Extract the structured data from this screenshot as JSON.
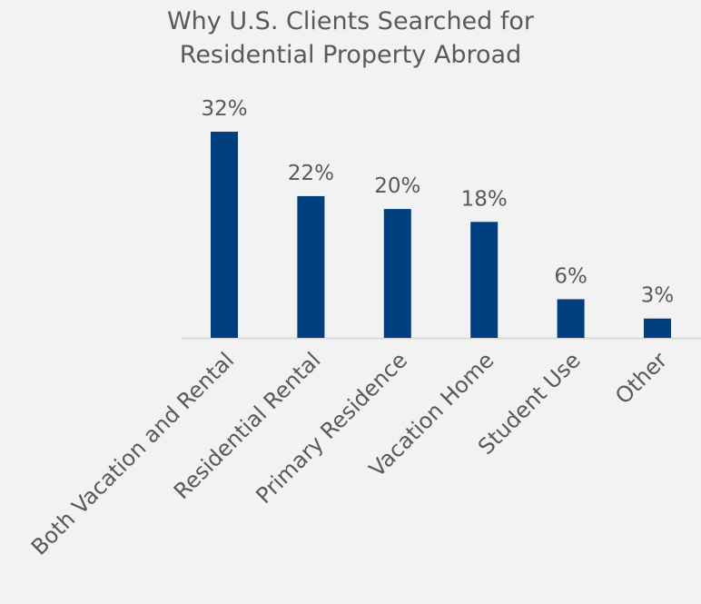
{
  "chart_data": {
    "type": "bar",
    "title": [
      "Why U.S. Clients Searched for",
      "Residential Property Abroad"
    ],
    "categories": [
      "Both Vacation and Rental",
      "Residential Rental",
      "Primary Residence",
      "Vacation Home",
      "Student Use",
      "Other"
    ],
    "values": [
      32,
      22,
      20,
      18,
      6,
      3
    ],
    "data_labels": [
      "32%",
      "22%",
      "20%",
      "18%",
      "6%",
      "3%"
    ],
    "ylim": [
      0,
      35
    ],
    "grid": false,
    "legend": "none",
    "colors": {
      "bar": "#003f7f",
      "text": "#595959",
      "axis": "#d9d9d9",
      "background": "#f2f2f2"
    }
  }
}
